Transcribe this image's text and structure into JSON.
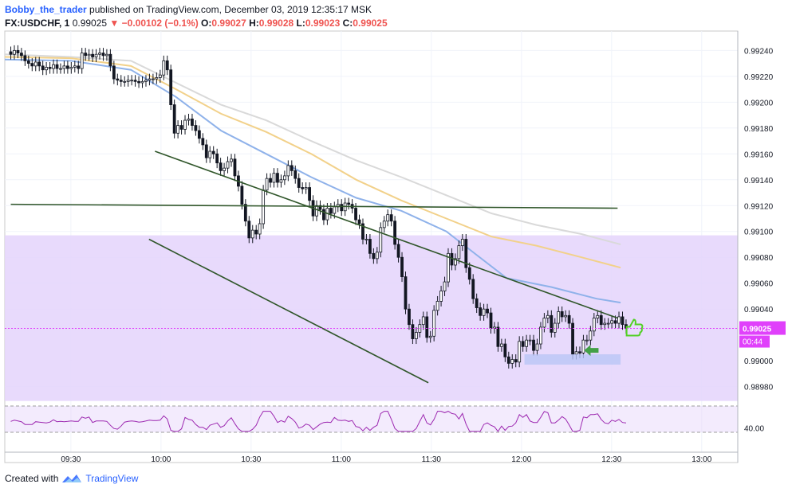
{
  "header": {
    "author": "Bobby_the_trader",
    "published_text": "published on TradingView.com, December 03, 2019 12:35:17 MSK",
    "symbol": "FX:USDCHF, 1",
    "last": "0.99025",
    "change": "▼ −0.00102 (−0.1%)",
    "o_label": "O:",
    "o": "0.99027",
    "h_label": "H:",
    "h": "0.99028",
    "l_label": "L:",
    "l": "0.99023",
    "c_label": "C:",
    "c": "0.99025"
  },
  "footer": {
    "created_with": "Created with",
    "brand": "TradingView"
  },
  "colors": {
    "candle": "#131722",
    "ma_fast": "#8fb2ea",
    "ma_mid": "#f2d18a",
    "ma_slow": "#d9d9d9",
    "zone": "#e4d3fb",
    "trendline": "#30562a",
    "rsi": "#9c27b0",
    "price_tag": "#e040fb",
    "demand_box": "#b9c6f5",
    "arrow": "#43a047",
    "thumb": "#52d024"
  },
  "chart_data": {
    "type": "candlestick",
    "symbol": "FX:USDCHF",
    "interval": "1",
    "price_labels": [
      "0.99240",
      "0.99220",
      "0.99200",
      "0.99180",
      "0.99160",
      "0.99140",
      "0.99120",
      "0.99100",
      "0.99080",
      "0.99060",
      "0.99040",
      "0.99000",
      "0.98980"
    ],
    "price_ticks": [
      0.9924,
      0.9922,
      0.992,
      0.9918,
      0.9916,
      0.9914,
      0.9912,
      0.991,
      0.9908,
      0.9906,
      0.9904,
      0.99,
      0.9898
    ],
    "ylim": [
      0.98965,
      0.99255
    ],
    "time_labels": [
      "09:30",
      "10:00",
      "10:30",
      "11:00",
      "11:30",
      "12:00",
      "12:30",
      "13:00"
    ],
    "time_ticks": [
      30,
      60,
      90,
      120,
      150,
      180,
      210,
      240
    ],
    "xlim": [
      8,
      252
    ],
    "last_price_label": "0.99025",
    "last_price": 0.99025,
    "countdown": "00:44",
    "rsi_label": "40.00",
    "rsi_level": 40,
    "zone": [
      0.9898,
      0.99097
    ],
    "close_series": [
      0.99237,
      0.9924,
      0.99238,
      0.99236,
      0.99232,
      0.9923,
      0.99228,
      0.99231,
      0.99228,
      0.99225,
      0.99227,
      0.99226,
      0.99229,
      0.99226,
      0.99226,
      0.99228,
      0.99226,
      0.99227,
      0.99228,
      0.99226,
      0.99238,
      0.99236,
      0.99237,
      0.99235,
      0.99237,
      0.99238,
      0.99236,
      0.99237,
      0.99228,
      0.99218,
      0.99217,
      0.99216,
      0.99216,
      0.99217,
      0.99217,
      0.99216,
      0.99215,
      0.99216,
      0.99217,
      0.99218,
      0.99218,
      0.99219,
      0.99221,
      0.99232,
      0.99225,
      0.99198,
      0.99176,
      0.99182,
      0.99179,
      0.99186,
      0.99187,
      0.99182,
      0.99178,
      0.99172,
      0.99167,
      0.99157,
      0.99162,
      0.9916,
      0.99153,
      0.99147,
      0.99149,
      0.99154,
      0.99156,
      0.99143,
      0.99135,
      0.99121,
      0.99108,
      0.99095,
      0.99101,
      0.99098,
      0.99106,
      0.99132,
      0.99141,
      0.99138,
      0.99145,
      0.99138,
      0.9914,
      0.99143,
      0.99151,
      0.99147,
      0.99141,
      0.99134,
      0.99133,
      0.99134,
      0.99124,
      0.99112,
      0.9912,
      0.99117,
      0.99109,
      0.99118,
      0.99114,
      0.99119,
      0.99121,
      0.99116,
      0.99122,
      0.99121,
      0.99118,
      0.99109,
      0.99106,
      0.99094,
      0.99094,
      0.99083,
      0.99079,
      0.99084,
      0.99103,
      0.99108,
      0.99113,
      0.99108,
      0.9909,
      0.9908,
      0.99065,
      0.9904,
      0.99028,
      0.99017,
      0.99022,
      0.99028,
      0.99034,
      0.99018,
      0.99019,
      0.99039,
      0.99046,
      0.99054,
      0.99061,
      0.99083,
      0.99074,
      0.99079,
      0.99089,
      0.99094,
      0.99072,
      0.99063,
      0.99048,
      0.99041,
      0.99035,
      0.9904,
      0.99037,
      0.99025,
      0.99026,
      0.99011,
      0.99013,
      0.99003,
      0.98998,
      0.99001,
      0.98999,
      0.99015,
      0.99011,
      0.99016,
      0.99016,
      0.99008,
      0.99013,
      0.99026,
      0.99033,
      0.99035,
      0.99022,
      0.99029,
      0.99038,
      0.99034,
      0.99035,
      0.99029,
      0.99005,
      0.99007,
      0.99006,
      0.99016,
      0.99016,
      0.99023,
      0.99033,
      0.99035,
      0.99028,
      0.99029,
      0.99029,
      0.99031,
      0.99029,
      0.99034,
      0.99028,
      0.99025
    ],
    "trendlines": [
      {
        "x1": 58,
        "y1": 0.99162,
        "x2": 212,
        "y2": 0.99033
      },
      {
        "x1": 10,
        "y1": 0.99121,
        "x2": 212,
        "y2": 0.99118
      },
      {
        "x1": 56,
        "y1": 0.99094,
        "x2": 149,
        "y2": 0.98983
      }
    ],
    "ma_fast": [
      [
        8,
        0.99233
      ],
      [
        30,
        0.99232
      ],
      [
        50,
        0.99225
      ],
      [
        65,
        0.99204
      ],
      [
        80,
        0.99178
      ],
      [
        95,
        0.9916
      ],
      [
        110,
        0.99142
      ],
      [
        125,
        0.99126
      ],
      [
        140,
        0.99116
      ],
      [
        155,
        0.991
      ],
      [
        165,
        0.99082
      ],
      [
        175,
        0.99064
      ],
      [
        190,
        0.99057
      ],
      [
        205,
        0.99048
      ],
      [
        213,
        0.99045
      ]
    ],
    "ma_mid": [
      [
        8,
        0.99235
      ],
      [
        30,
        0.99234
      ],
      [
        50,
        0.99228
      ],
      [
        65,
        0.9921
      ],
      [
        80,
        0.99191
      ],
      [
        95,
        0.99177
      ],
      [
        110,
        0.9916
      ],
      [
        125,
        0.9914
      ],
      [
        140,
        0.99124
      ],
      [
        155,
        0.9911
      ],
      [
        170,
        0.99096
      ],
      [
        185,
        0.99089
      ],
      [
        200,
        0.9908
      ],
      [
        213,
        0.99072
      ]
    ],
    "ma_slow": [
      [
        8,
        0.99237
      ],
      [
        30,
        0.99235
      ],
      [
        50,
        0.99232
      ],
      [
        65,
        0.99215
      ],
      [
        80,
        0.99198
      ],
      [
        95,
        0.99186
      ],
      [
        110,
        0.9917
      ],
      [
        125,
        0.99155
      ],
      [
        140,
        0.99142
      ],
      [
        155,
        0.99128
      ],
      [
        170,
        0.99114
      ],
      [
        185,
        0.99105
      ],
      [
        200,
        0.99098
      ],
      [
        213,
        0.9909
      ]
    ]
  }
}
